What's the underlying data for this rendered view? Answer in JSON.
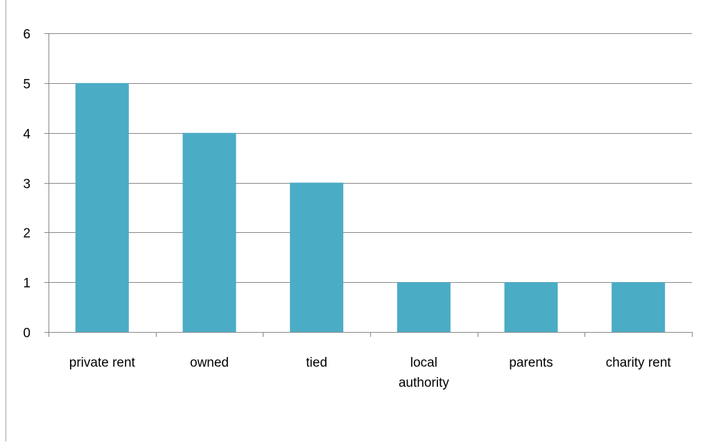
{
  "chart_data": {
    "type": "bar",
    "title": "",
    "xlabel": "",
    "ylabel": "",
    "categories": [
      [
        "private rent"
      ],
      [
        "owned"
      ],
      [
        "tied"
      ],
      [
        "local",
        "authority"
      ],
      [
        "parents"
      ],
      [
        "charity rent"
      ]
    ],
    "values": [
      5,
      4,
      3,
      1,
      1,
      1
    ],
    "ylim": [
      0,
      6
    ],
    "yticks": [
      "0",
      "1",
      "2",
      "3",
      "4",
      "5",
      "6"
    ],
    "grid": true,
    "legend": "none",
    "colors": {
      "bar": "#4bacc6",
      "grid": "#868686",
      "axis": "#868686"
    }
  }
}
